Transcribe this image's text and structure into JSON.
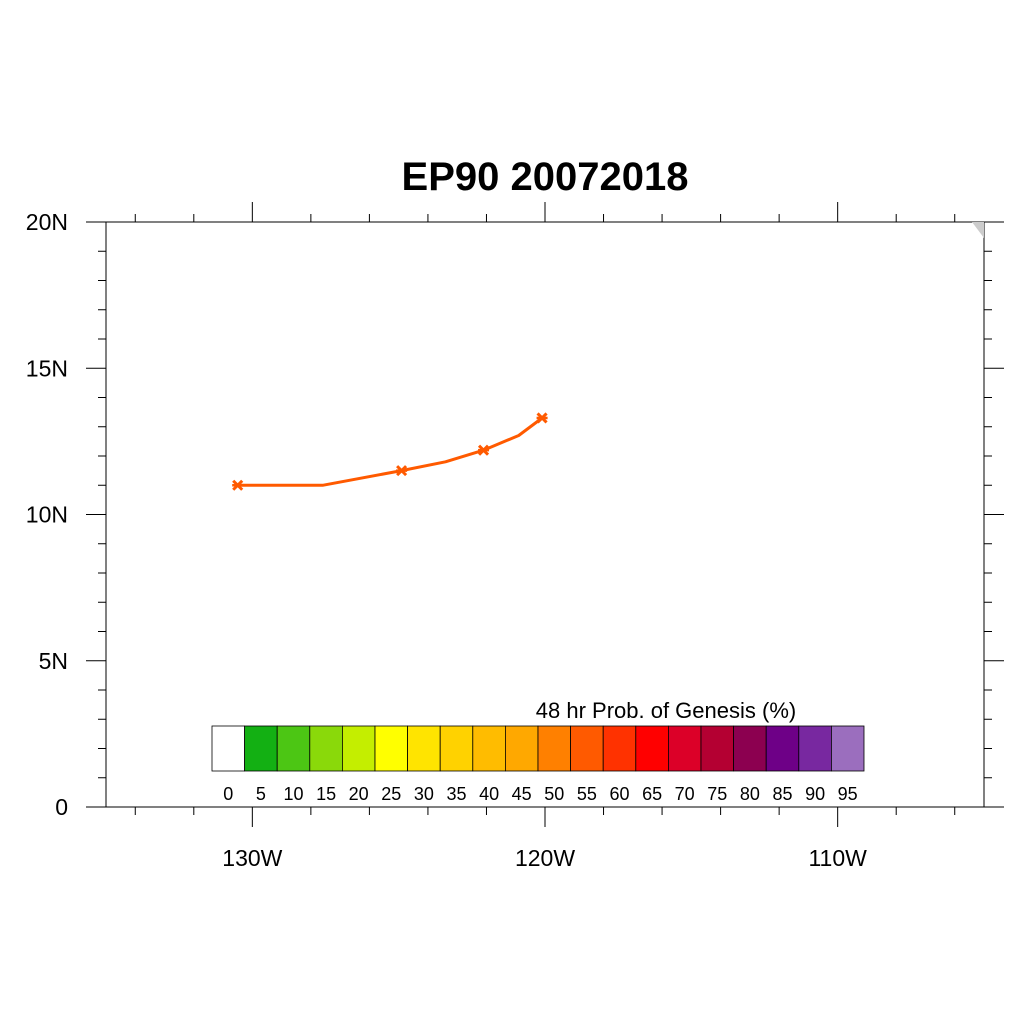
{
  "title": "EP90 20072018",
  "map": {
    "lon_range": [
      -135,
      -105
    ],
    "lat_range": [
      0,
      20
    ],
    "lat_ticks": [
      {
        "value": 0,
        "label": "0"
      },
      {
        "value": 5,
        "label": "5N"
      },
      {
        "value": 10,
        "label": "10N"
      },
      {
        "value": 15,
        "label": "15N"
      },
      {
        "value": 20,
        "label": "20N"
      }
    ],
    "lon_ticks": [
      {
        "value": -130,
        "label": "130W"
      },
      {
        "value": -120,
        "label": "120W"
      },
      {
        "value": -110,
        "label": "110W"
      }
    ]
  },
  "chart_data": {
    "type": "line",
    "track": {
      "color": "#ff5a00",
      "points": [
        {
          "lon": -130.5,
          "lat": 11.0,
          "marker": true
        },
        {
          "lon": -127.6,
          "lat": 11.0,
          "marker": false
        },
        {
          "lon": -124.9,
          "lat": 11.5,
          "marker": true
        },
        {
          "lon": -123.4,
          "lat": 11.8,
          "marker": false
        },
        {
          "lon": -122.1,
          "lat": 12.2,
          "marker": true
        },
        {
          "lon": -120.9,
          "lat": 12.7,
          "marker": false
        },
        {
          "lon": -120.1,
          "lat": 13.3,
          "marker": true
        }
      ]
    }
  },
  "colorbar": {
    "title": "48 hr Prob. of Genesis (%)",
    "labels": [
      "0",
      "5",
      "10",
      "15",
      "20",
      "25",
      "30",
      "35",
      "40",
      "45",
      "50",
      "55",
      "60",
      "65",
      "70",
      "75",
      "80",
      "85",
      "90",
      "95"
    ],
    "colors": [
      "#ffffff",
      "#13b013",
      "#4cc614",
      "#8ad90a",
      "#c4ee00",
      "#ffff00",
      "#ffe400",
      "#ffd200",
      "#ffbc00",
      "#ffa800",
      "#ff8000",
      "#ff5a00",
      "#ff3200",
      "#ff0000",
      "#dc0028",
      "#b40032",
      "#8c0050",
      "#6e0087",
      "#7828a0",
      "#9b6ebe"
    ]
  }
}
